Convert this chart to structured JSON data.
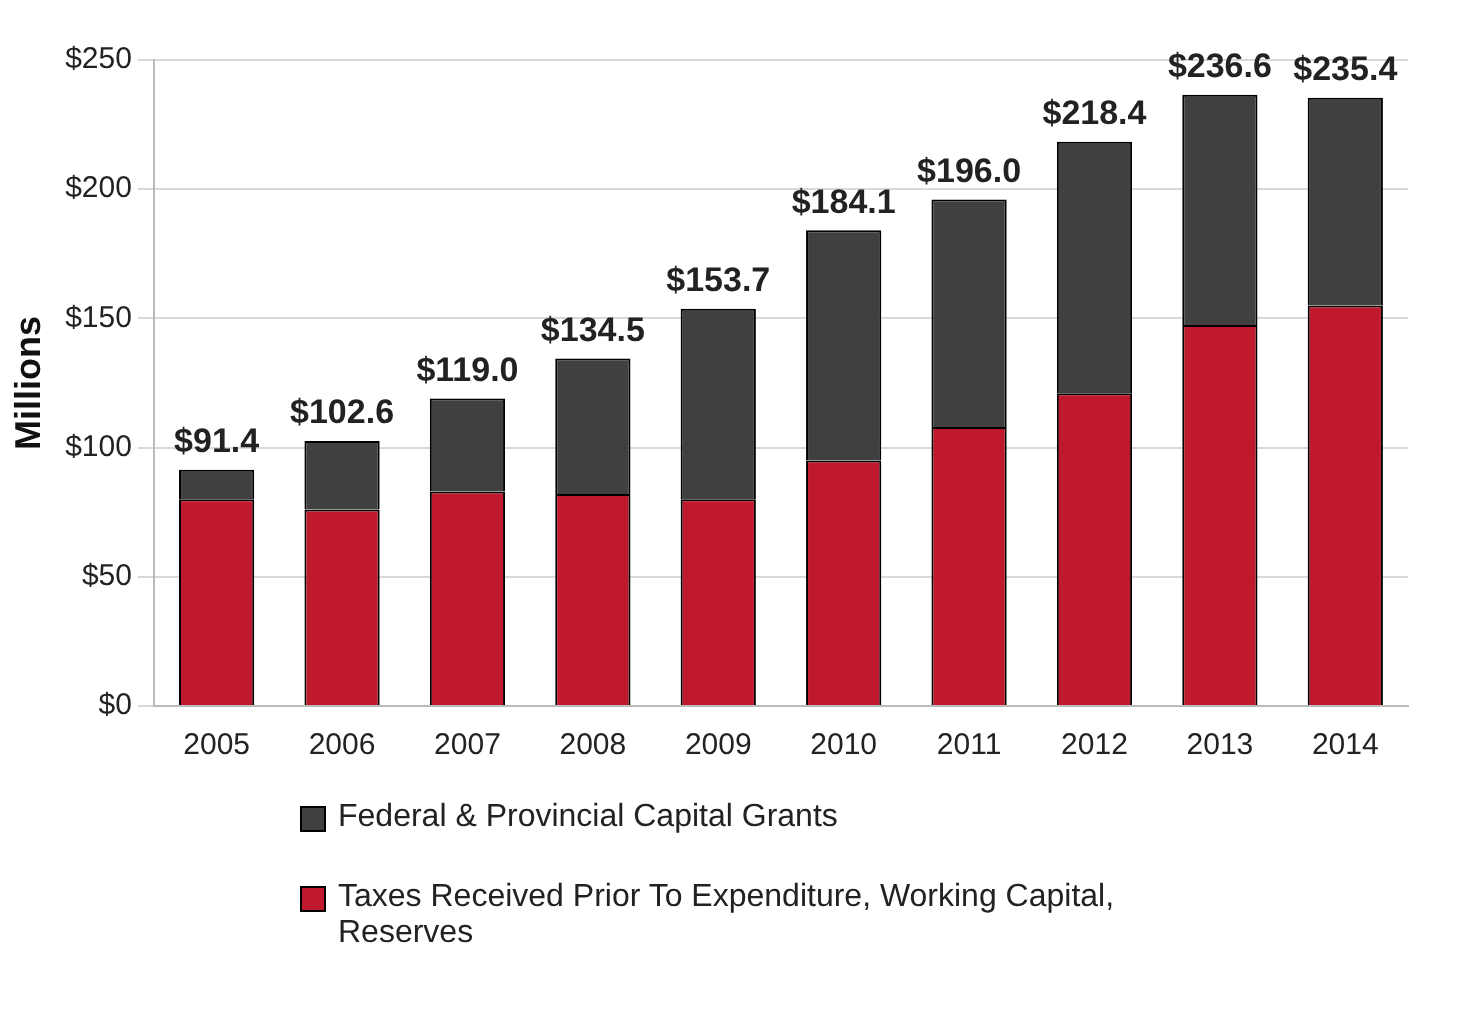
{
  "chart_data": {
    "type": "bar",
    "stacked": true,
    "ylabel": "Millions",
    "categories": [
      "2005",
      "2006",
      "2007",
      "2008",
      "2009",
      "2010",
      "2011",
      "2012",
      "2013",
      "2014"
    ],
    "series": [
      {
        "name": "Taxes Received Prior To Expenditure, Working Capital, Reserves",
        "color": "#c0182c",
        "values": [
          80,
          76,
          83,
          82,
          80,
          95,
          108,
          121,
          147.4,
          155
        ]
      },
      {
        "name": "Federal & Provincial Capital Grants",
        "color": "#404040",
        "values": [
          11.4,
          26.6,
          36,
          52.5,
          73.7,
          89.1,
          88,
          97.4,
          89.2,
          80.4
        ]
      }
    ],
    "totals": [
      "$91.4",
      "$102.6",
      "$119.0",
      "$134.5",
      "$153.7",
      "$184.1",
      "$196.0",
      "$218.4",
      "$236.6",
      "$235.4"
    ],
    "ylim": [
      0,
      250
    ],
    "yticks": [
      {
        "value": 0,
        "label": "$0"
      },
      {
        "value": 50,
        "label": "$50"
      },
      {
        "value": 100,
        "label": "$100"
      },
      {
        "value": 150,
        "label": "$150"
      },
      {
        "value": 200,
        "label": "$200"
      },
      {
        "value": 250,
        "label": "$250"
      }
    ],
    "grid": "y",
    "legend": "bottom"
  }
}
